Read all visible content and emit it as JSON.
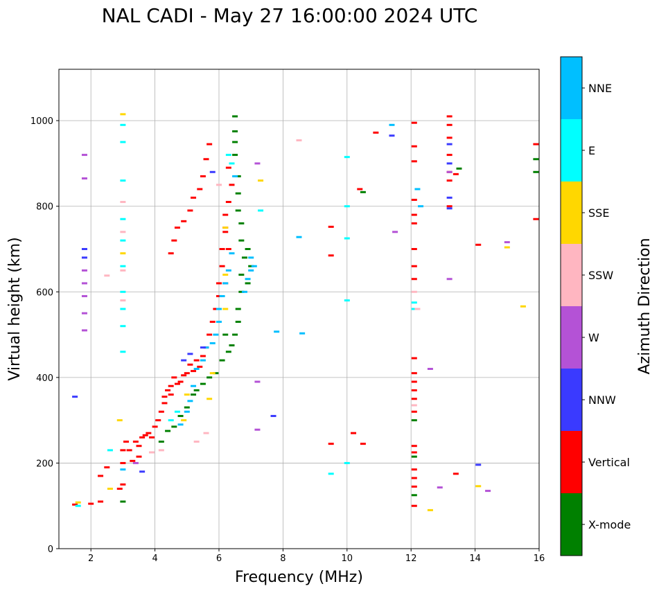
{
  "chart_data": {
    "type": "scatter",
    "title": "NAL CADI - May 27 16:00:00 2024 UTC",
    "xlabel": "Frequency (MHz)",
    "ylabel": "Virtual height (km)",
    "xlim": [
      1,
      16
    ],
    "ylim": [
      0,
      1120
    ],
    "xticks": [
      2,
      4,
      6,
      8,
      10,
      12,
      14,
      16
    ],
    "yticks": [
      0,
      200,
      400,
      600,
      800,
      1000
    ],
    "grid": true,
    "colorbar": {
      "label": "Azimuth Direction",
      "categories": [
        "X-mode",
        "Vertical",
        "NNW",
        "W",
        "SSW",
        "SSE",
        "E",
        "NNE"
      ],
      "colors": [
        "#008000",
        "#ff0000",
        "#3a3aff",
        "#b452d6",
        "#ffb6c1",
        "#ffd700",
        "#00ffff",
        "#00bfff"
      ]
    },
    "series": [
      {
        "name": "Vertical",
        "points": [
          [
            1.5,
            103
          ],
          [
            2.0,
            105
          ],
          [
            2.3,
            110
          ],
          [
            2.3,
            170
          ],
          [
            2.5,
            190
          ],
          [
            2.9,
            140
          ],
          [
            3.0,
            150
          ],
          [
            3.0,
            200
          ],
          [
            3.0,
            230
          ],
          [
            3.1,
            250
          ],
          [
            3.2,
            230
          ],
          [
            3.3,
            205
          ],
          [
            3.4,
            250
          ],
          [
            3.5,
            240
          ],
          [
            3.5,
            215
          ],
          [
            3.6,
            260
          ],
          [
            3.7,
            265
          ],
          [
            3.8,
            270
          ],
          [
            3.9,
            260
          ],
          [
            4.0,
            285
          ],
          [
            4.1,
            300
          ],
          [
            4.2,
            320
          ],
          [
            4.3,
            340
          ],
          [
            4.3,
            355
          ],
          [
            4.4,
            370
          ],
          [
            4.5,
            360
          ],
          [
            4.5,
            380
          ],
          [
            4.6,
            400
          ],
          [
            4.7,
            385
          ],
          [
            4.8,
            390
          ],
          [
            4.9,
            405
          ],
          [
            5.0,
            410
          ],
          [
            5.1,
            430
          ],
          [
            5.2,
            415
          ],
          [
            5.3,
            440
          ],
          [
            5.4,
            425
          ],
          [
            5.5,
            450
          ],
          [
            5.6,
            470
          ],
          [
            5.7,
            500
          ],
          [
            5.8,
            530
          ],
          [
            5.9,
            560
          ],
          [
            6.0,
            590
          ],
          [
            6.0,
            620
          ],
          [
            6.1,
            660
          ],
          [
            6.1,
            700
          ],
          [
            6.2,
            740
          ],
          [
            6.2,
            780
          ],
          [
            6.3,
            810
          ],
          [
            6.4,
            850
          ],
          [
            6.3,
            890
          ],
          [
            4.5,
            690
          ],
          [
            4.6,
            720
          ],
          [
            4.7,
            750
          ],
          [
            4.9,
            765
          ],
          [
            5.1,
            790
          ],
          [
            5.2,
            820
          ],
          [
            5.4,
            840
          ],
          [
            5.5,
            870
          ],
          [
            5.6,
            910
          ],
          [
            5.7,
            945
          ],
          [
            6.2,
            750
          ],
          [
            6.3,
            700
          ],
          [
            6.2,
            620
          ],
          [
            9.5,
            752
          ],
          [
            9.5,
            685
          ],
          [
            9.5,
            245
          ],
          [
            10.2,
            270
          ],
          [
            10.5,
            245
          ],
          [
            10.9,
            972
          ],
          [
            10.4,
            840
          ],
          [
            12.1,
            995
          ],
          [
            12.1,
            940
          ],
          [
            12.1,
            905
          ],
          [
            12.1,
            815
          ],
          [
            12.1,
            780
          ],
          [
            12.1,
            760
          ],
          [
            12.1,
            700
          ],
          [
            12.1,
            660
          ],
          [
            12.1,
            630
          ],
          [
            12.1,
            445
          ],
          [
            12.1,
            410
          ],
          [
            12.1,
            390
          ],
          [
            12.1,
            370
          ],
          [
            12.1,
            350
          ],
          [
            12.1,
            320
          ],
          [
            12.1,
            240
          ],
          [
            12.1,
            225
          ],
          [
            12.1,
            185
          ],
          [
            12.1,
            165
          ],
          [
            12.1,
            145
          ],
          [
            12.1,
            100
          ],
          [
            13.2,
            1010
          ],
          [
            13.2,
            990
          ],
          [
            13.2,
            960
          ],
          [
            13.2,
            920
          ],
          [
            13.2,
            880
          ],
          [
            13.2,
            860
          ],
          [
            13.2,
            800
          ],
          [
            13.4,
            875
          ],
          [
            14.1,
            710
          ],
          [
            13.4,
            175
          ],
          [
            15.9,
            945
          ],
          [
            15.9,
            770
          ]
        ]
      },
      {
        "name": "X-mode",
        "points": [
          [
            3.0,
            110
          ],
          [
            4.2,
            250
          ],
          [
            4.4,
            275
          ],
          [
            4.6,
            285
          ],
          [
            4.8,
            310
          ],
          [
            5.0,
            330
          ],
          [
            5.2,
            360
          ],
          [
            5.3,
            370
          ],
          [
            5.5,
            385
          ],
          [
            5.7,
            400
          ],
          [
            5.9,
            410
          ],
          [
            6.1,
            440
          ],
          [
            6.3,
            460
          ],
          [
            6.4,
            475
          ],
          [
            6.5,
            500
          ],
          [
            6.6,
            530
          ],
          [
            6.6,
            560
          ],
          [
            6.7,
            600
          ],
          [
            6.7,
            640
          ],
          [
            6.8,
            680
          ],
          [
            6.7,
            720
          ],
          [
            6.7,
            760
          ],
          [
            6.6,
            790
          ],
          [
            6.6,
            830
          ],
          [
            6.6,
            870
          ],
          [
            6.5,
            920
          ],
          [
            6.5,
            950
          ],
          [
            6.5,
            975
          ],
          [
            6.5,
            1010
          ],
          [
            6.9,
            700
          ],
          [
            7.0,
            660
          ],
          [
            6.9,
            620
          ],
          [
            6.2,
            500
          ],
          [
            10.5,
            833
          ],
          [
            12.1,
            215
          ],
          [
            12.1,
            125
          ],
          [
            12.1,
            300
          ],
          [
            13.5,
            888
          ],
          [
            15.9,
            910
          ],
          [
            15.9,
            880
          ]
        ]
      },
      {
        "name": "NNE",
        "points": [
          [
            3.0,
            185
          ],
          [
            4.8,
            290
          ],
          [
            5.0,
            320
          ],
          [
            5.1,
            345
          ],
          [
            5.2,
            380
          ],
          [
            5.3,
            420
          ],
          [
            5.5,
            440
          ],
          [
            5.6,
            470
          ],
          [
            5.8,
            480
          ],
          [
            5.9,
            500
          ],
          [
            6.0,
            530
          ],
          [
            6.0,
            560
          ],
          [
            6.1,
            590
          ],
          [
            6.2,
            620
          ],
          [
            6.3,
            650
          ],
          [
            6.4,
            690
          ],
          [
            6.8,
            600
          ],
          [
            6.9,
            630
          ],
          [
            7.0,
            650
          ],
          [
            7.0,
            680
          ],
          [
            7.1,
            660
          ],
          [
            6.5,
            870
          ],
          [
            8.5,
            728
          ],
          [
            8.6,
            503
          ],
          [
            7.8,
            507
          ],
          [
            11.4,
            990
          ],
          [
            12.2,
            840
          ],
          [
            12.3,
            800
          ]
        ]
      },
      {
        "name": "E",
        "points": [
          [
            1.6,
            100
          ],
          [
            2.6,
            230
          ],
          [
            3.0,
            460
          ],
          [
            3.0,
            520
          ],
          [
            3.0,
            560
          ],
          [
            3.0,
            600
          ],
          [
            3.0,
            660
          ],
          [
            3.0,
            720
          ],
          [
            3.0,
            770
          ],
          [
            3.0,
            860
          ],
          [
            3.0,
            950
          ],
          [
            3.0,
            990
          ],
          [
            4.5,
            300
          ],
          [
            4.7,
            320
          ],
          [
            6.4,
            900
          ],
          [
            6.3,
            920
          ],
          [
            7.3,
            790
          ],
          [
            10.0,
            915
          ],
          [
            10.0,
            800
          ],
          [
            10.0,
            725
          ],
          [
            10.0,
            580
          ],
          [
            10.0,
            200
          ],
          [
            9.5,
            175
          ],
          [
            12.1,
            560
          ],
          [
            12.1,
            575
          ]
        ]
      },
      {
        "name": "NNW",
        "points": [
          [
            1.5,
            355
          ],
          [
            1.8,
            700
          ],
          [
            1.8,
            680
          ],
          [
            3.6,
            180
          ],
          [
            4.9,
            440
          ],
          [
            5.1,
            455
          ],
          [
            5.5,
            470
          ],
          [
            5.8,
            880
          ],
          [
            7.7,
            310
          ],
          [
            11.4,
            965
          ],
          [
            13.2,
            945
          ],
          [
            13.2,
            900
          ],
          [
            13.2,
            820
          ],
          [
            13.2,
            795
          ],
          [
            14.1,
            196
          ]
        ]
      },
      {
        "name": "W",
        "points": [
          [
            1.8,
            920
          ],
          [
            1.8,
            865
          ],
          [
            1.8,
            650
          ],
          [
            1.8,
            620
          ],
          [
            1.8,
            590
          ],
          [
            1.8,
            550
          ],
          [
            1.8,
            510
          ],
          [
            3.4,
            200
          ],
          [
            7.2,
            900
          ],
          [
            7.2,
            390
          ],
          [
            7.2,
            278
          ],
          [
            11.5,
            740
          ],
          [
            12.6,
            420
          ],
          [
            12.9,
            143
          ],
          [
            13.2,
            630
          ],
          [
            13.2,
            880
          ],
          [
            14.4,
            135
          ],
          [
            15.0,
            716
          ]
        ]
      },
      {
        "name": "SSW",
        "points": [
          [
            2.5,
            638
          ],
          [
            3.0,
            740
          ],
          [
            3.0,
            650
          ],
          [
            3.0,
            580
          ],
          [
            3.0,
            810
          ],
          [
            3.9,
            225
          ],
          [
            4.2,
            230
          ],
          [
            5.3,
            250
          ],
          [
            5.6,
            270
          ],
          [
            6.0,
            850
          ],
          [
            8.5,
            954
          ],
          [
            12.1,
            600
          ],
          [
            12.2,
            560
          ],
          [
            12.1,
            335
          ]
        ]
      },
      {
        "name": "SSE",
        "points": [
          [
            1.6,
            108
          ],
          [
            2.6,
            140
          ],
          [
            2.9,
            300
          ],
          [
            3.0,
            1015
          ],
          [
            3.0,
            690
          ],
          [
            4.9,
            300
          ],
          [
            5.0,
            360
          ],
          [
            5.7,
            350
          ],
          [
            5.8,
            410
          ],
          [
            6.2,
            750
          ],
          [
            6.2,
            640
          ],
          [
            6.2,
            560
          ],
          [
            7.3,
            860
          ],
          [
            12.6,
            90
          ],
          [
            14.1,
            146
          ],
          [
            15.0,
            704
          ],
          [
            15.5,
            566
          ]
        ]
      }
    ]
  }
}
